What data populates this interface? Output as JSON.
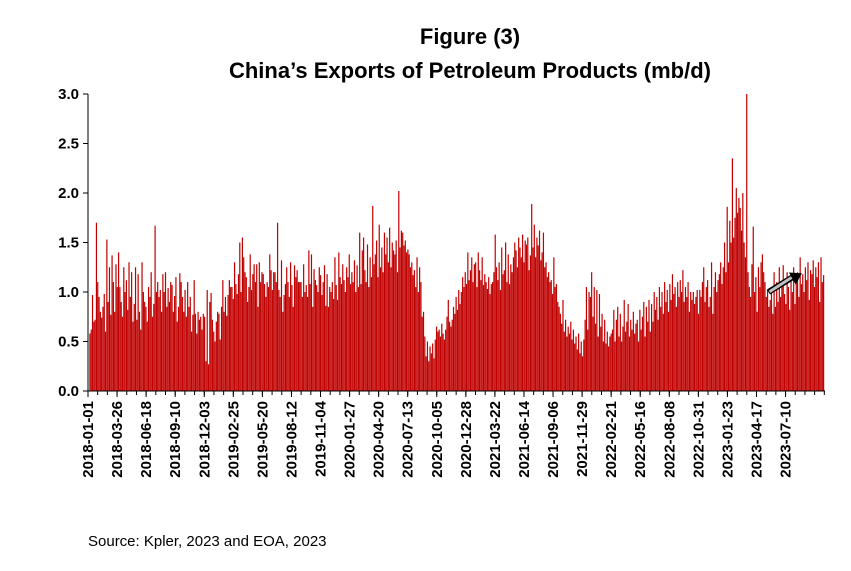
{
  "chart_data": {
    "type": "bar",
    "title_line1": "Figure (3)",
    "title_line2": "China’s Exports of Petroleum Products (mb/d)",
    "xlabel": "",
    "ylabel": "",
    "ylim": [
      0,
      3.0
    ],
    "yticks": [
      "0.0",
      "0.5",
      "1.0",
      "1.5",
      "2.0",
      "2.5",
      "3.0"
    ],
    "x_tick_labels": [
      "2018-01-01",
      "2018-03-26",
      "2018-06-18",
      "2018-09-10",
      "2018-12-03",
      "2019-02-25",
      "2019-05-20",
      "2019-08-12",
      "2019-11-04",
      "2020-01-27",
      "2020-04-20",
      "2020-07-13",
      "2020-10-05",
      "2020-12-28",
      "2021-03-22",
      "2021-06-14",
      "2021-09-06",
      "2021-11-29",
      "2022-02-21",
      "2022-05-16",
      "2022-08-08",
      "2022-10-31",
      "2023-01-23",
      "2023-04-17",
      "2023-07-10"
    ],
    "x_start": "2018-01-01",
    "x_frequency": "daily",
    "bar_color": "#c00000",
    "trend_arrow": {
      "from": "2023-04-17",
      "to": "2023-09-01",
      "description": "upward trend arrow"
    },
    "grid": false,
    "legend": "none",
    "values": [
      0.58,
      0.62,
      0.97,
      0.7,
      0.72,
      1.7,
      1.1,
      0.95,
      0.8,
      0.74,
      0.85,
      0.98,
      0.6,
      1.53,
      0.9,
      1.25,
      0.77,
      1.37,
      1.1,
      0.8,
      1.28,
      1.05,
      1.4,
      1.05,
      0.9,
      0.75,
      1.25,
      1.0,
      1.12,
      0.82,
      1.3,
      0.95,
      1.2,
      0.7,
      0.88,
      1.25,
      0.72,
      1.18,
      0.8,
      0.62,
      1.3,
      1.0,
      0.9,
      0.85,
      0.7,
      1.05,
      0.95,
      1.2,
      0.75,
      0.88,
      1.67,
      1.0,
      1.1,
      0.95,
      1.02,
      0.8,
      1.18,
      1.0,
      1.2,
      0.85,
      1.04,
      0.9,
      1.1,
      1.07,
      0.8,
      0.96,
      1.15,
      0.7,
      0.85,
      1.19,
      1.1,
      0.95,
      0.8,
      1.02,
      0.75,
      1.1,
      0.85,
      0.95,
      0.6,
      0.77,
      1.12,
      0.78,
      0.58,
      0.8,
      0.72,
      0.75,
      0.62,
      0.78,
      0.75,
      0.3,
      1.02,
      0.27,
      0.9,
      0.99,
      0.72,
      0.6,
      0.5,
      0.7,
      0.8,
      0.78,
      0.52,
      0.85,
      1.12,
      0.8,
      0.95,
      0.76,
      0.97,
      1.12,
      1.05,
      1.05,
      0.93,
      1.3,
      1.08,
      0.98,
      1.18,
      1.5,
      1.0,
      1.55,
      1.35,
      1.2,
      1.15,
      0.9,
      1.05,
      1.38,
      1.02,
      1.18,
      1.28,
      1.1,
      1.28,
      0.85,
      1.3,
      1.1,
      1.2,
      1.18,
      1.08,
      0.95,
      1.1,
      1.05,
      1.38,
      1.22,
      1.02,
      1.2,
      1.2,
      1.1,
      1.7,
      1.02,
      0.95,
      1.32,
      0.8,
      0.97,
      1.08,
      1.25,
      1.1,
      0.95,
      1.3,
      1.07,
      0.85,
      1.27,
      1.15,
      1.22,
      1.1,
      1.1,
      1.1,
      0.95,
      1.28,
      1.0,
      1.07,
      0.95,
      1.42,
      1.08,
      1.38,
      0.85,
      1.23,
      1.12,
      1.07,
      1.0,
      1.25,
      1.17,
      0.97,
      1.1,
      1.27,
      0.86,
      1.18,
      0.85,
      1.05,
      1.0,
      1.1,
      0.93,
      1.35,
      1.07,
      0.92,
      1.4,
      1.15,
      1.08,
      1.28,
      1.12,
      1.0,
      1.25,
      1.15,
      1.38,
      1.08,
      1.2,
      1.1,
      1.32,
      1.0,
      1.27,
      1.05,
      1.6,
      1.08,
      1.42,
      1.55,
      1.22,
      1.1,
      1.48,
      1.05,
      1.35,
      1.15,
      1.87,
      1.28,
      1.38,
      1.52,
      1.15,
      1.68,
      1.25,
      1.45,
      1.2,
      1.6,
      1.38,
      1.55,
      1.3,
      1.65,
      1.25,
      1.5,
      1.42,
      1.38,
      1.52,
      1.2,
      2.02,
      1.45,
      1.62,
      1.6,
      1.47,
      1.52,
      1.4,
      1.43,
      1.38,
      1.25,
      1.3,
      1.17,
      1.22,
      1.05,
      1.35,
      1.0,
      1.25,
      1.1,
      0.75,
      0.8,
      0.55,
      0.35,
      0.5,
      0.3,
      0.45,
      0.38,
      0.48,
      0.33,
      0.52,
      0.65,
      0.6,
      0.62,
      0.55,
      0.68,
      0.58,
      0.52,
      0.62,
      0.75,
      0.92,
      0.7,
      0.65,
      0.72,
      0.85,
      0.78,
      0.95,
      0.82,
      1.02,
      0.88,
      1.0,
      1.15,
      1.05,
      1.2,
      1.08,
      1.4,
      1.12,
      1.22,
      1.35,
      1.1,
      1.28,
      1.3,
      1.05,
      1.4,
      1.22,
      1.12,
      1.35,
      1.07,
      1.18,
      1.1,
      1.03,
      1.15,
      0.98,
      1.08,
      1.1,
      1.2,
      1.58,
      1.25,
      1.12,
      1.3,
      1.02,
      1.45,
      1.18,
      1.22,
      1.5,
      1.1,
      1.38,
      1.08,
      1.28,
      1.2,
      1.35,
      1.5,
      1.42,
      1.25,
      1.55,
      1.45,
      1.35,
      1.58,
      1.3,
      1.52,
      1.48,
      1.55,
      1.22,
      1.37,
      1.89,
      1.45,
      1.68,
      1.35,
      1.55,
      1.47,
      1.62,
      1.32,
      1.4,
      1.6,
      1.25,
      1.3,
      1.15,
      1.2,
      1.1,
      1.12,
      0.98,
      1.35,
      1.05,
      1.08,
      0.9,
      0.85,
      0.78,
      0.68,
      0.92,
      0.6,
      0.72,
      0.55,
      0.65,
      0.58,
      0.7,
      0.52,
      0.62,
      0.48,
      0.55,
      0.42,
      0.58,
      0.38,
      0.5,
      0.35,
      0.52,
      0.72,
      1.05,
      0.62,
      1.0,
      0.95,
      1.2,
      0.75,
      1.05,
      0.68,
      1.02,
      0.55,
      0.98,
      0.65,
      0.78,
      0.5,
      0.72,
      0.48,
      0.6,
      0.45,
      0.55,
      0.58,
      0.62,
      0.82,
      0.5,
      0.72,
      0.85,
      0.55,
      0.78,
      0.5,
      0.65,
      0.92,
      0.6,
      0.7,
      0.88,
      0.55,
      0.72,
      0.62,
      0.8,
      0.58,
      0.68,
      0.72,
      0.5,
      0.82,
      0.62,
      0.75,
      0.9,
      0.55,
      0.85,
      0.7,
      0.92,
      0.6,
      0.88,
      0.7,
      1.0,
      0.82,
      0.95,
      0.72,
      1.05,
      0.85,
      1.0,
      0.78,
      1.1,
      0.9,
      1.02,
      0.8,
      1.08,
      0.92,
      1.18,
      0.98,
      1.05,
      0.85,
      1.1,
      0.95,
      1.12,
      1.0,
      1.22,
      0.9,
      1.05,
      0.95,
      1.1,
      0.8,
      1.0,
      0.92,
      1.0,
      0.88,
      0.95,
      1.02,
      0.78,
      1.02,
      0.95,
      1.1,
      1.25,
      0.9,
      1.05,
      1.12,
      0.85,
      0.95,
      1.3,
      0.78,
      1.05,
      1.2,
      1.0,
      1.12,
      1.18,
      1.3,
      1.08,
      1.25,
      1.5,
      1.2,
      1.86,
      1.3,
      1.72,
      1.5,
      2.35,
      1.55,
      1.75,
      2.05,
      1.8,
      1.95,
      1.85,
      1.62,
      2.0,
      1.5,
      1.35,
      3.0,
      1.2,
      1.05,
      0.95,
      1.28,
      1.66,
      1.0,
      1.15,
      0.8,
      1.25,
      1.05,
      1.3,
      1.38,
      1.2,
      1.1,
      0.95,
      1.02,
      0.85,
      0.92,
      1.05,
      0.78,
      1.2,
      0.85,
      1.1,
      0.9,
      1.25,
      0.95,
      1.05,
      1.27,
      0.98,
      0.88,
      1.2,
      1.05,
      0.82,
      1.15,
      1.0,
      1.25,
      0.88,
      1.12,
      1.2,
      0.95,
      1.35,
      1.08,
      1.18,
      1.0,
      1.25,
      1.12,
      1.3,
      0.92,
      1.22,
      1.18,
      1.32,
      1.05,
      1.25,
      1.15,
      1.3,
      0.9,
      1.35,
      1.1,
      1.17
    ]
  },
  "source": {
    "text": "Source: Kpler, 2023 and EOA, 2023"
  }
}
